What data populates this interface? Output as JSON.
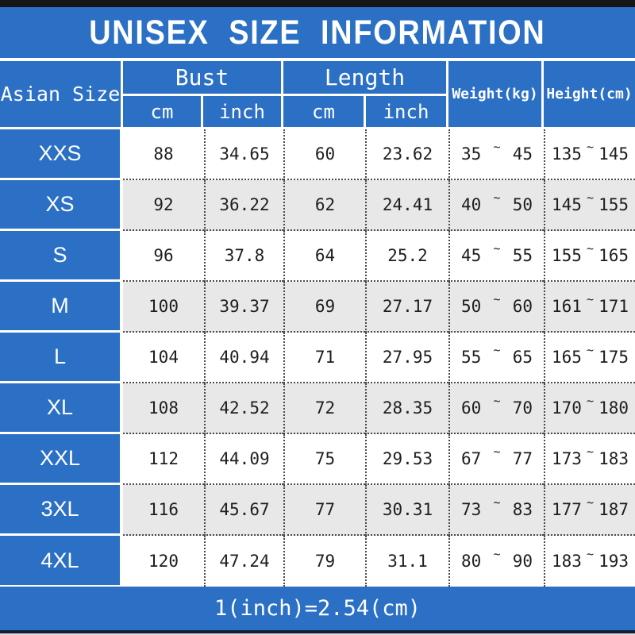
{
  "title": "UNISEX SIZE INFORMATION",
  "colors": {
    "accent_blue": "#2b70c5",
    "alt_row_gray": "#e8e8e8",
    "bar_black": "#161616",
    "text_dark": "#1e1e1e",
    "text_white": "#ffffff"
  },
  "table": {
    "header": {
      "size_col": "Asian Size",
      "groups": [
        {
          "label": "Bust",
          "subs": [
            "cm",
            "inch"
          ]
        },
        {
          "label": "Length",
          "subs": [
            "cm",
            "inch"
          ]
        }
      ],
      "weight": "Weight(kg)",
      "height": "Height(cm)",
      "range_separator": "~"
    },
    "rows": [
      {
        "size": "XXS",
        "bust_cm": "88",
        "bust_inch": "34.65",
        "length_cm": "60",
        "length_inch": "23.62",
        "weight_min": "35",
        "weight_max": "45",
        "height_min": "135",
        "height_max": "145"
      },
      {
        "size": "XS",
        "bust_cm": "92",
        "bust_inch": "36.22",
        "length_cm": "62",
        "length_inch": "24.41",
        "weight_min": "40",
        "weight_max": "50",
        "height_min": "145",
        "height_max": "155"
      },
      {
        "size": "S",
        "bust_cm": "96",
        "bust_inch": "37.8",
        "length_cm": "64",
        "length_inch": "25.2",
        "weight_min": "45",
        "weight_max": "55",
        "height_min": "155",
        "height_max": "165"
      },
      {
        "size": "M",
        "bust_cm": "100",
        "bust_inch": "39.37",
        "length_cm": "69",
        "length_inch": "27.17",
        "weight_min": "50",
        "weight_max": "60",
        "height_min": "161",
        "height_max": "171"
      },
      {
        "size": "L",
        "bust_cm": "104",
        "bust_inch": "40.94",
        "length_cm": "71",
        "length_inch": "27.95",
        "weight_min": "55",
        "weight_max": "65",
        "height_min": "165",
        "height_max": "175"
      },
      {
        "size": "XL",
        "bust_cm": "108",
        "bust_inch": "42.52",
        "length_cm": "72",
        "length_inch": "28.35",
        "weight_min": "60",
        "weight_max": "70",
        "height_min": "170",
        "height_max": "180"
      },
      {
        "size": "XXL",
        "bust_cm": "112",
        "bust_inch": "44.09",
        "length_cm": "75",
        "length_inch": "29.53",
        "weight_min": "67",
        "weight_max": "77",
        "height_min": "173",
        "height_max": "183"
      },
      {
        "size": "3XL",
        "bust_cm": "116",
        "bust_inch": "45.67",
        "length_cm": "77",
        "length_inch": "30.31",
        "weight_min": "73",
        "weight_max": "83",
        "height_min": "177",
        "height_max": "187"
      },
      {
        "size": "4XL",
        "bust_cm": "120",
        "bust_inch": "47.24",
        "length_cm": "79",
        "length_inch": "31.1",
        "weight_min": "80",
        "weight_max": "90",
        "height_min": "183",
        "height_max": "193"
      }
    ]
  },
  "footer": {
    "note": "1(inch)=2.54(cm)"
  }
}
